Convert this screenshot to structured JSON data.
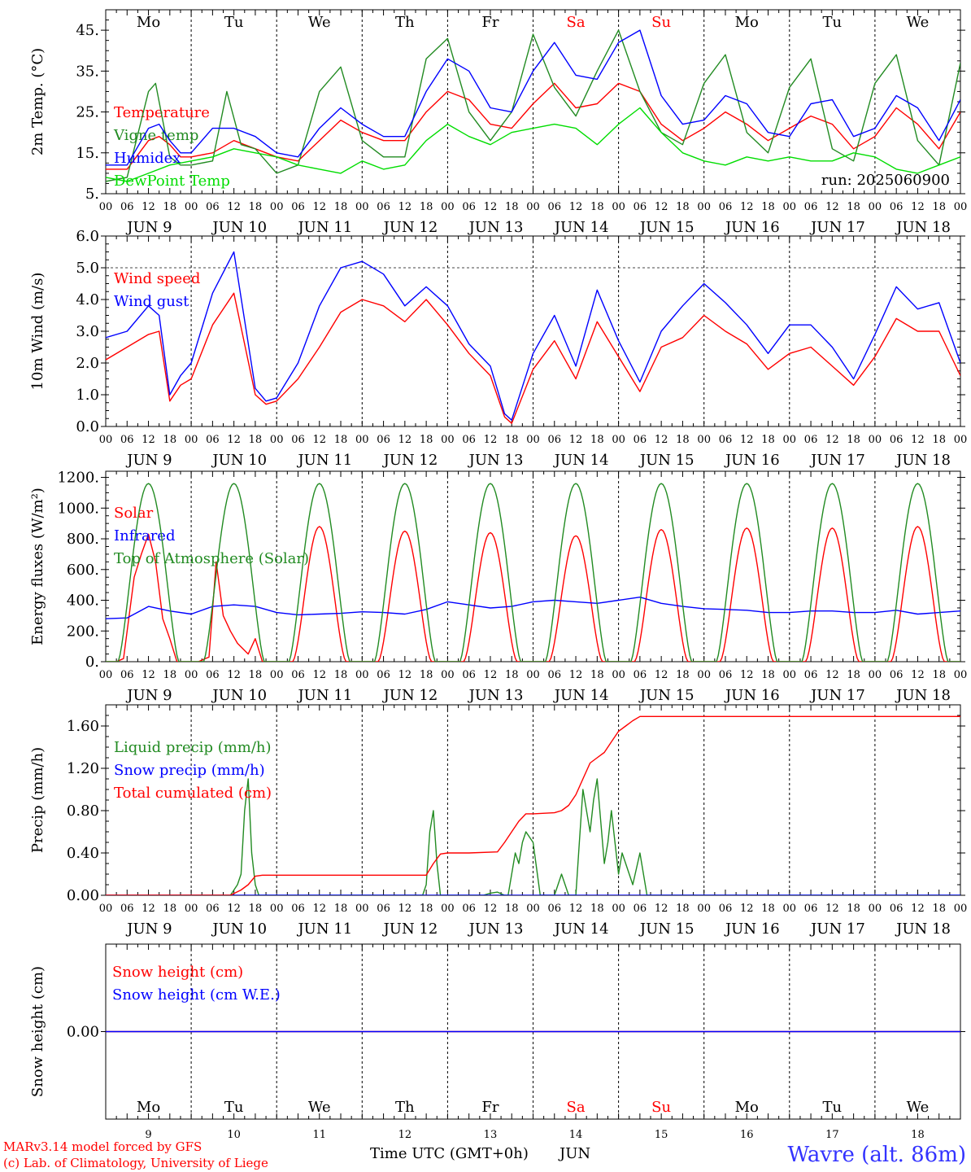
{
  "run_label": "run: 2025060900",
  "xaxis": {
    "hour_labels": [
      "00",
      "06",
      "12",
      "18"
    ],
    "final_hour": "00",
    "day_labels": [
      "JUN  9",
      "JUN 10",
      "JUN 11",
      "JUN 12",
      "JUN 13",
      "JUN 14",
      "JUN 15",
      "JUN 16",
      "JUN 17",
      "JUN 18"
    ],
    "weekdays": [
      "Mo",
      "Tu",
      "We",
      "Th",
      "Fr",
      "Sa",
      "Su",
      "Mo",
      "Tu",
      "We"
    ],
    "weekday_colors": [
      "#000000",
      "#000000",
      "#000000",
      "#000000",
      "#000000",
      "#ff0000",
      "#ff0000",
      "#000000",
      "#000000",
      "#000000"
    ],
    "day_numbers": [
      "9",
      "10",
      "11",
      "12",
      "13",
      "14",
      "15",
      "16",
      "17",
      "18"
    ],
    "time_title": "Time UTC (GMT+0h)",
    "month": "JUN"
  },
  "footer": {
    "model_line": "MARv3.14 model forced by GFS",
    "credit_line": "(c) Lab. of Climatology, University of Liege",
    "station": "Wavre (alt. 86m)"
  },
  "chart_data": [
    {
      "id": "temperature",
      "type": "line",
      "ylabel": "2m Temp. (°C)",
      "yticks": [
        5,
        15,
        25,
        35,
        45
      ],
      "ytick_labels": [
        "5.",
        "15.",
        "25.",
        "35.",
        "45."
      ],
      "ylim": [
        5,
        50
      ],
      "x_unit": "hours since JUN 9 00 UTC",
      "xlim": [
        0,
        240
      ],
      "series": [
        {
          "name": "Temperature",
          "color": "#ff0000",
          "x": [
            0,
            6,
            12,
            15,
            18,
            21,
            24,
            30,
            36,
            42,
            48,
            54,
            60,
            66,
            72,
            78,
            84,
            90,
            96,
            102,
            108,
            114,
            120,
            126,
            132,
            138,
            144,
            150,
            156,
            162,
            168,
            174,
            180,
            186,
            192,
            198,
            204,
            210,
            216,
            222,
            228,
            234,
            240
          ],
          "y": [
            11,
            11,
            18,
            19,
            17,
            14,
            14,
            15,
            18,
            16,
            14,
            13,
            18,
            23,
            20,
            18,
            18,
            25,
            30,
            28,
            22,
            21,
            27,
            32,
            26,
            27,
            32,
            30,
            22,
            18,
            21,
            25,
            22,
            18,
            21,
            24,
            22,
            16,
            19,
            26,
            22,
            16,
            25
          ]
        },
        {
          "name": "Vigne temp",
          "color": "#228b22",
          "x": [
            0,
            6,
            12,
            14,
            18,
            21,
            24,
            30,
            34,
            38,
            42,
            48,
            54,
            60,
            66,
            72,
            78,
            84,
            90,
            96,
            102,
            108,
            114,
            120,
            126,
            132,
            138,
            144,
            150,
            156,
            162,
            168,
            174,
            180,
            186,
            192,
            198,
            204,
            210,
            216,
            222,
            228,
            234,
            240
          ],
          "y": [
            8,
            9,
            30,
            32,
            14,
            12,
            12,
            13,
            30,
            17,
            16,
            10,
            12,
            30,
            36,
            18,
            14,
            14,
            38,
            43,
            25,
            18,
            25,
            44,
            31,
            24,
            35,
            45,
            30,
            20,
            17,
            32,
            39,
            20,
            15,
            31,
            38,
            16,
            13,
            32,
            39,
            18,
            12,
            37
          ]
        },
        {
          "name": "Humidex",
          "color": "#0000ff",
          "x": [
            0,
            6,
            12,
            15,
            18,
            21,
            24,
            30,
            36,
            42,
            48,
            54,
            60,
            66,
            72,
            78,
            84,
            90,
            96,
            102,
            108,
            114,
            120,
            126,
            132,
            138,
            144,
            150,
            156,
            162,
            168,
            174,
            180,
            186,
            192,
            198,
            204,
            210,
            216,
            222,
            228,
            234,
            240
          ],
          "y": [
            12,
            12,
            21,
            22,
            18,
            15,
            15,
            21,
            21,
            19,
            15,
            14,
            21,
            26,
            22,
            19,
            19,
            30,
            38,
            35,
            26,
            25,
            35,
            42,
            34,
            33,
            42,
            45,
            29,
            22,
            23,
            29,
            27,
            20,
            19,
            27,
            28,
            19,
            21,
            29,
            26,
            18,
            28
          ]
        },
        {
          "name": "DewPoint Temp",
          "color": "#00dd00",
          "x": [
            0,
            6,
            12,
            18,
            24,
            30,
            36,
            42,
            48,
            54,
            60,
            66,
            72,
            78,
            84,
            90,
            96,
            102,
            108,
            114,
            120,
            126,
            132,
            138,
            144,
            150,
            156,
            162,
            168,
            174,
            180,
            186,
            192,
            198,
            204,
            210,
            216,
            222,
            228,
            234,
            240
          ],
          "y": [
            9,
            8,
            10,
            12,
            13,
            14,
            16,
            15,
            14,
            12,
            11,
            10,
            13,
            11,
            12,
            18,
            22,
            19,
            17,
            20,
            21,
            22,
            21,
            17,
            22,
            26,
            20,
            15,
            13,
            12,
            14,
            13,
            14,
            13,
            13,
            15,
            14,
            11,
            10,
            12,
            14
          ]
        }
      ]
    },
    {
      "id": "wind",
      "type": "line",
      "ylabel": "10m Wind (m/s)",
      "yticks": [
        0,
        1,
        2,
        3,
        4,
        5,
        6
      ],
      "ytick_labels": [
        "0.0",
        "1.0",
        "2.0",
        "3.0",
        "4.0",
        "5.0",
        "6.0"
      ],
      "ylim": [
        0,
        6
      ],
      "reference_line": 5,
      "x_unit": "hours since JUN 9 00 UTC",
      "xlim": [
        0,
        240
      ],
      "series": [
        {
          "name": "Wind speed",
          "color": "#ff0000",
          "x": [
            0,
            6,
            12,
            15,
            18,
            21,
            24,
            30,
            36,
            42,
            45,
            48,
            54,
            60,
            66,
            72,
            78,
            84,
            90,
            96,
            102,
            108,
            112,
            114,
            120,
            126,
            132,
            138,
            144,
            150,
            156,
            162,
            168,
            174,
            180,
            186,
            192,
            198,
            204,
            210,
            216,
            222,
            228,
            234,
            240
          ],
          "y": [
            2.1,
            2.5,
            2.9,
            3.0,
            0.8,
            1.3,
            1.5,
            3.2,
            4.2,
            1.0,
            0.7,
            0.8,
            1.5,
            2.5,
            3.6,
            4.0,
            3.8,
            3.3,
            4.0,
            3.2,
            2.3,
            1.6,
            0.3,
            0.1,
            1.8,
            2.7,
            1.5,
            3.3,
            2.2,
            1.1,
            2.5,
            2.8,
            3.5,
            3.0,
            2.6,
            1.8,
            2.3,
            2.5,
            1.9,
            1.3,
            2.2,
            3.4,
            3.0,
            3.0,
            1.6
          ]
        },
        {
          "name": "Wind gust",
          "color": "#0000ff",
          "x": [
            0,
            6,
            12,
            15,
            18,
            21,
            24,
            30,
            36,
            42,
            45,
            48,
            54,
            60,
            66,
            72,
            78,
            84,
            90,
            96,
            102,
            108,
            112,
            114,
            120,
            126,
            132,
            138,
            144,
            150,
            156,
            162,
            168,
            174,
            180,
            186,
            192,
            198,
            204,
            210,
            216,
            222,
            228,
            234,
            240
          ],
          "y": [
            2.8,
            3.0,
            3.8,
            3.5,
            1.0,
            1.6,
            2.0,
            4.2,
            5.5,
            1.2,
            0.8,
            0.9,
            2.0,
            3.8,
            5.0,
            5.2,
            4.8,
            3.8,
            4.4,
            3.8,
            2.6,
            1.9,
            0.4,
            0.2,
            2.3,
            3.5,
            1.9,
            4.3,
            2.7,
            1.4,
            3.0,
            3.8,
            4.5,
            3.9,
            3.2,
            2.3,
            3.2,
            3.2,
            2.5,
            1.5,
            2.9,
            4.4,
            3.7,
            3.9,
            2.0
          ]
        }
      ]
    },
    {
      "id": "energy",
      "type": "line",
      "ylabel": "Energy fluxes (W/m²)",
      "yticks": [
        0,
        200,
        400,
        600,
        800,
        1000,
        1200
      ],
      "ytick_labels": [
        "0.",
        "200.",
        "400.",
        "600.",
        "800.",
        "1000.",
        "1200."
      ],
      "ylim": [
        0,
        1240
      ],
      "x_unit": "hours since JUN 9 00 UTC",
      "xlim": [
        0,
        240
      ],
      "solar_day_peaks": [
        830,
        700,
        880,
        850,
        840,
        820,
        860,
        870,
        870,
        880
      ],
      "toa_peak": 1160,
      "series": [
        {
          "name": "Solar",
          "color": "#ff0000",
          "x": [
            0,
            3,
            5,
            8,
            10,
            12,
            14,
            16,
            18,
            20,
            24,
            26,
            29,
            31,
            33,
            35,
            37,
            40,
            42,
            44,
            48
          ],
          "y": [
            0,
            0,
            20,
            550,
            700,
            830,
            650,
            280,
            150,
            0,
            0,
            0,
            30,
            650,
            300,
            200,
            120,
            50,
            150,
            0,
            0
          ]
        },
        {
          "name": "Infrared",
          "color": "#0000ff",
          "x": [
            0,
            6,
            12,
            18,
            24,
            30,
            36,
            42,
            48,
            54,
            60,
            66,
            72,
            78,
            84,
            90,
            96,
            102,
            108,
            114,
            120,
            126,
            132,
            138,
            144,
            150,
            156,
            162,
            168,
            174,
            180,
            186,
            192,
            198,
            204,
            210,
            216,
            222,
            228,
            234,
            240
          ],
          "y": [
            280,
            285,
            360,
            330,
            310,
            360,
            370,
            360,
            320,
            305,
            310,
            315,
            325,
            320,
            310,
            340,
            390,
            370,
            350,
            360,
            390,
            400,
            390,
            380,
            400,
            420,
            380,
            360,
            345,
            340,
            335,
            320,
            320,
            330,
            330,
            320,
            320,
            335,
            310,
            320,
            330
          ]
        },
        {
          "name": "Top of Atmosphere (Solar)",
          "color": "#228b22"
        }
      ]
    },
    {
      "id": "precip",
      "type": "line",
      "ylabel": "Precip (mm/h)",
      "yticks": [
        0,
        0.4,
        0.8,
        1.2,
        1.6
      ],
      "ytick_labels": [
        "0.00",
        "0.40",
        "0.80",
        "1.20",
        "1.60"
      ],
      "ylim": [
        0,
        1.8
      ],
      "x_unit": "hours since JUN 9 00 UTC",
      "xlim": [
        0,
        240
      ],
      "series": [
        {
          "name": "Liquid precip (mm/h)",
          "color": "#228b22",
          "x": [
            0,
            35,
            37,
            38,
            39,
            40,
            41,
            42,
            43,
            44,
            89,
            90,
            91,
            92,
            93,
            94,
            95,
            96,
            106,
            108,
            110,
            112,
            113,
            114,
            115,
            116,
            117,
            118,
            120,
            122,
            126,
            128,
            130,
            132,
            133,
            134,
            135,
            136,
            137,
            138,
            139,
            140,
            141,
            142,
            143,
            144,
            145,
            146,
            148,
            150,
            152,
            170,
            240
          ],
          "y": [
            0,
            0,
            0.1,
            0.2,
            0.8,
            1.1,
            0.4,
            0.1,
            0,
            0,
            0,
            0.1,
            0.6,
            0.8,
            0.3,
            0,
            0,
            0,
            0,
            0.02,
            0.03,
            0,
            0,
            0.2,
            0.4,
            0.3,
            0.5,
            0.6,
            0.5,
            0,
            0,
            0.2,
            0,
            0,
            0.5,
            1.0,
            0.8,
            0.6,
            0.9,
            1.1,
            0.7,
            0.3,
            0.5,
            0.8,
            0.5,
            0.2,
            0.4,
            0.3,
            0.1,
            0.4,
            0,
            0,
            0
          ]
        },
        {
          "name": "Snow precip (mm/h)",
          "color": "#0000ff",
          "x": [
            0,
            240
          ],
          "y": [
            0,
            0
          ]
        },
        {
          "name": "Total cumulated (cm)",
          "color": "#ff0000",
          "x": [
            0,
            35,
            38,
            40,
            42,
            44,
            48,
            84,
            90,
            92,
            94,
            96,
            102,
            110,
            112,
            114,
            116,
            118,
            120,
            126,
            128,
            130,
            132,
            134,
            136,
            138,
            140,
            142,
            144,
            146,
            148,
            150,
            152,
            240
          ],
          "y": [
            0,
            0,
            0.05,
            0.1,
            0.18,
            0.19,
            0.19,
            0.19,
            0.19,
            0.3,
            0.39,
            0.4,
            0.4,
            0.41,
            0.5,
            0.6,
            0.7,
            0.77,
            0.77,
            0.78,
            0.8,
            0.85,
            0.95,
            1.1,
            1.25,
            1.3,
            1.35,
            1.45,
            1.55,
            1.6,
            1.65,
            1.69,
            1.69,
            1.69
          ]
        }
      ]
    },
    {
      "id": "snow",
      "type": "line",
      "ylabel": "Snow height (cm)",
      "yticks": [
        0
      ],
      "ytick_labels": [
        "0.00"
      ],
      "ylim": [
        -1,
        1
      ],
      "x_unit": "hours since JUN 9 00 UTC",
      "xlim": [
        0,
        240
      ],
      "series": [
        {
          "name": "Snow height (cm)",
          "color": "#ff0000",
          "x": [
            0,
            240
          ],
          "y": [
            0,
            0
          ]
        },
        {
          "name": "Snow height (cm W.E.)",
          "color": "#0000ff",
          "x": [
            0,
            240
          ],
          "y": [
            0,
            0
          ]
        }
      ]
    }
  ]
}
